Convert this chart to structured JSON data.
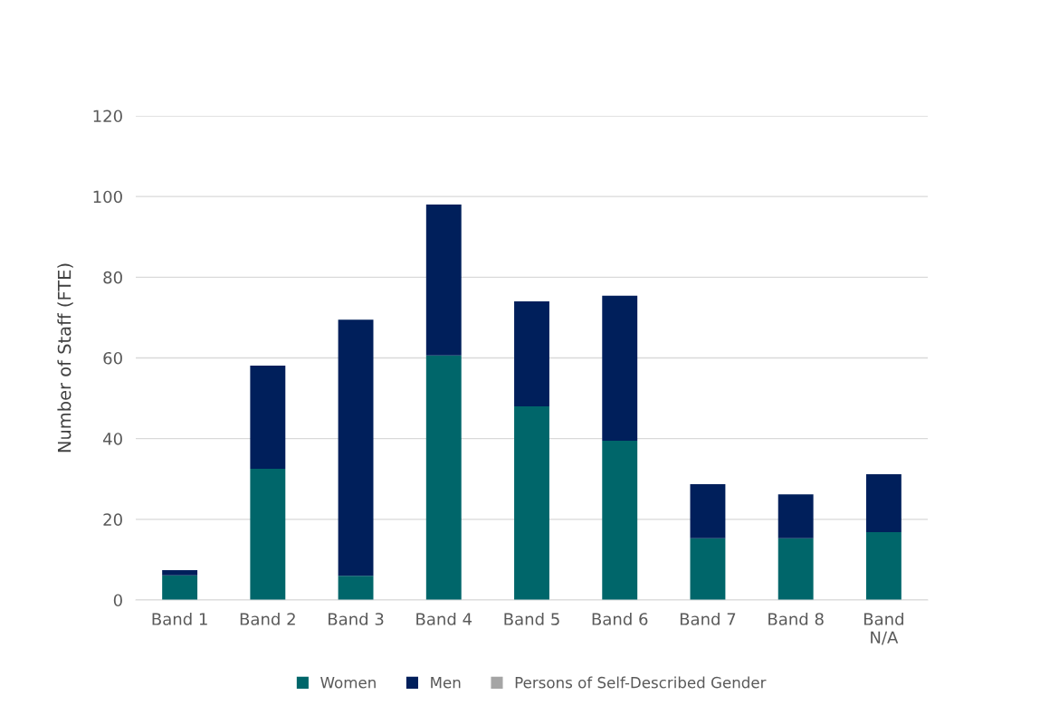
{
  "chart_data": {
    "type": "bar",
    "stacked": true,
    "ylabel": "Number of Staff (FTE)",
    "categories": [
      "Band 1",
      "Band 2",
      "Band 3",
      "Band 4",
      "Band 5",
      "Band 6",
      "Band 7",
      "Band 8",
      "Band\nN/A"
    ],
    "series": [
      {
        "name": "Women",
        "color": "#00666a",
        "values": [
          6.1,
          32.5,
          6,
          60.6,
          48,
          39.5,
          15.3,
          15.3,
          16.8
        ]
      },
      {
        "name": "Men",
        "color": "#001f5b",
        "values": [
          1.3,
          25.6,
          63.5,
          37.4,
          26,
          35.9,
          13.4,
          10.9,
          14.4
        ]
      },
      {
        "name": "Persons of Self-Described Gender",
        "color": "#a5a5a5",
        "values": [
          0,
          0,
          0,
          0,
          0,
          0,
          0,
          0,
          0
        ]
      }
    ],
    "ylim": [
      0,
      120
    ],
    "yticks": [
      0,
      20,
      40,
      60,
      80,
      100,
      120
    ],
    "grid": "y",
    "legend": "bottom"
  }
}
